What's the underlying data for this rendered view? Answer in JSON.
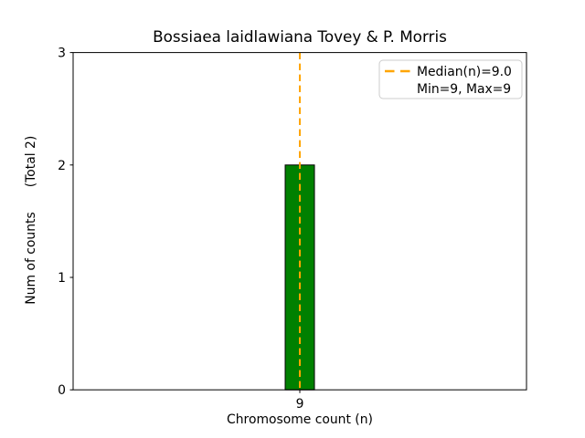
{
  "chart_data": {
    "type": "bar",
    "title": "Bossiaea laidlawiana Tovey & P. Morris",
    "xlabel": "Chromosome count (n)",
    "ylabel": "Num of counts",
    "ylabel_secondary": "(Total 2)",
    "categories": [
      "9"
    ],
    "values": [
      2
    ],
    "total_counts": 2,
    "ylim": [
      0,
      3
    ],
    "yticks": [
      0,
      1,
      2,
      3
    ],
    "grid": false,
    "bar_color": "#008000",
    "bar_edge_color": "#000000",
    "median_line": {
      "value": 9.0,
      "at_category": "9",
      "style": "dashed",
      "color": "#FFA500"
    },
    "legend": {
      "position": "upper right",
      "entries": [
        {
          "label": "Median(n)=9.0",
          "handle": "dashed-line",
          "color": "#FFA500"
        },
        {
          "label": "Min=9, Max=9",
          "handle": "none",
          "color": "none"
        }
      ]
    },
    "stats": {
      "median": 9.0,
      "min": 9,
      "max": 9
    }
  }
}
